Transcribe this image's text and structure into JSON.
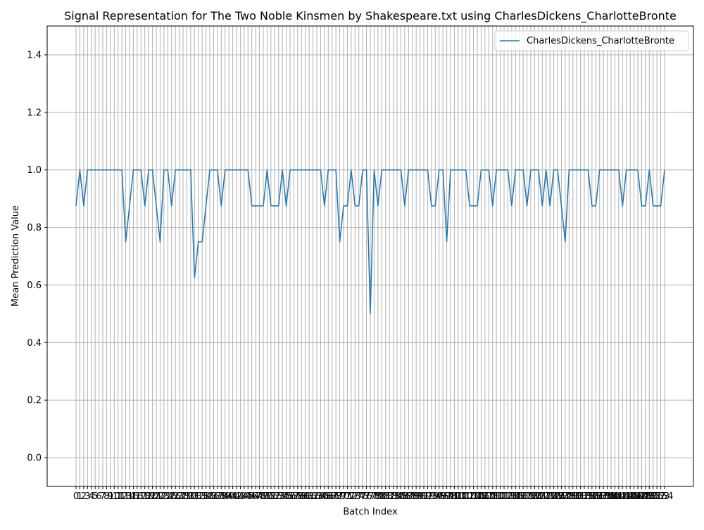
{
  "chart_data": {
    "type": "line",
    "title": "Signal Representation for The Two Noble Kinsmen by Shakespeare.txt using CharlesDickens_CharlotteBronte",
    "xlabel": "Batch Index",
    "ylabel": "Mean Prediction Value",
    "ylim": [
      -0.1,
      1.5
    ],
    "yticks": [
      0.0,
      0.2,
      0.4,
      0.6,
      0.8,
      1.0,
      1.2,
      1.4
    ],
    "ytick_labels": [
      "0.0",
      "0.2",
      "0.4",
      "0.6",
      "0.8",
      "1.0",
      "1.2",
      "1.4"
    ],
    "grid": true,
    "legend_placement": "top-right",
    "colors": {
      "series": "#1f77b4",
      "grid": "#b0b0b0"
    },
    "series": [
      {
        "name": "CharlesDickens_CharlotteBronte",
        "x_start": 0,
        "values": [
          0.875,
          1.0,
          0.875,
          1.0,
          1.0,
          1.0,
          1.0,
          1.0,
          1.0,
          1.0,
          1.0,
          1.0,
          1.0,
          0.75,
          0.875,
          1.0,
          1.0,
          1.0,
          0.875,
          1.0,
          1.0,
          0.875,
          0.75,
          1.0,
          1.0,
          0.875,
          1.0,
          1.0,
          1.0,
          1.0,
          1.0,
          0.625,
          0.75,
          0.75,
          0.875,
          1.0,
          1.0,
          1.0,
          0.875,
          1.0,
          1.0,
          1.0,
          1.0,
          1.0,
          1.0,
          1.0,
          0.875,
          0.875,
          0.875,
          0.875,
          1.0,
          0.875,
          0.875,
          0.875,
          1.0,
          0.875,
          1.0,
          1.0,
          1.0,
          1.0,
          1.0,
          1.0,
          1.0,
          1.0,
          1.0,
          0.875,
          1.0,
          1.0,
          1.0,
          0.75,
          0.875,
          0.875,
          1.0,
          0.875,
          0.875,
          1.0,
          1.0,
          0.5,
          1.0,
          0.875,
          1.0,
          1.0,
          1.0,
          1.0,
          1.0,
          1.0,
          0.875,
          1.0,
          1.0,
          1.0,
          1.0,
          1.0,
          1.0,
          0.875,
          0.875,
          1.0,
          1.0,
          0.75,
          1.0,
          1.0,
          1.0,
          1.0,
          1.0,
          0.875,
          0.875,
          0.875,
          1.0,
          1.0,
          1.0,
          0.875,
          1.0,
          1.0,
          1.0,
          1.0,
          0.875,
          1.0,
          1.0,
          1.0,
          0.875,
          1.0,
          1.0,
          1.0,
          0.875,
          1.0,
          0.875,
          1.0,
          1.0,
          0.875,
          0.75,
          1.0,
          1.0,
          1.0,
          1.0,
          1.0,
          1.0,
          0.875,
          0.875,
          1.0,
          1.0,
          1.0,
          1.0,
          1.0,
          1.0,
          0.875,
          1.0,
          1.0,
          1.0,
          1.0,
          0.875,
          0.875,
          1.0,
          0.875,
          0.875,
          0.875,
          1.0
        ]
      }
    ]
  }
}
